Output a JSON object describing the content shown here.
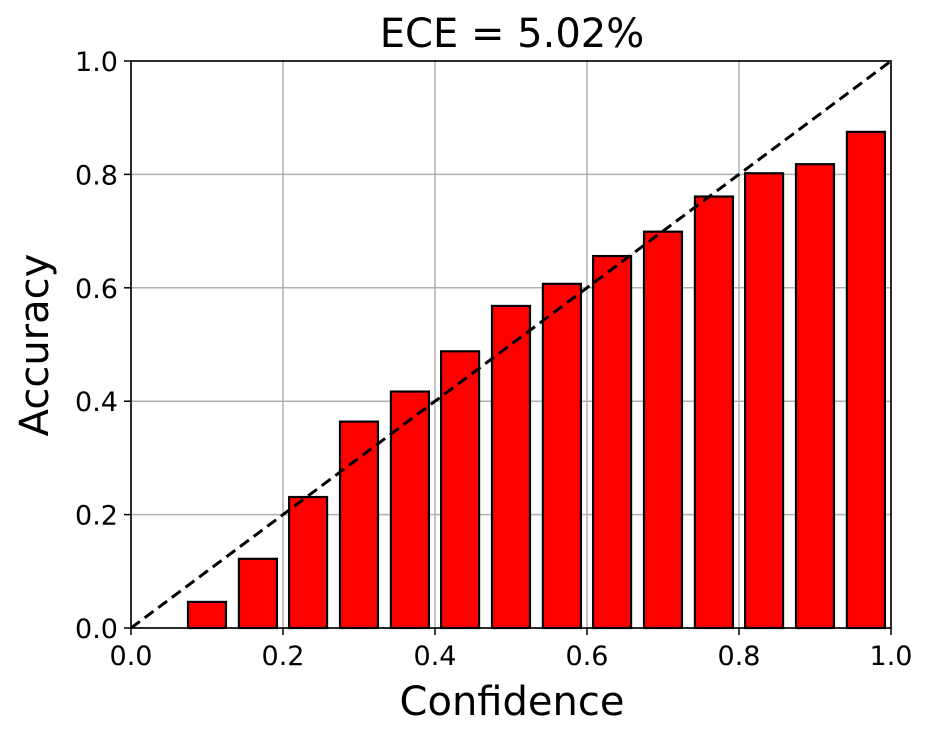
{
  "chart_data": {
    "type": "bar",
    "title": "ECE = 5.02%",
    "xlabel": "Confidence",
    "ylabel": "Accuracy",
    "xlim": [
      0.0,
      1.0
    ],
    "ylim": [
      0.0,
      1.0
    ],
    "grid": true,
    "bin_width": 0.05,
    "x": [
      0.1,
      0.167,
      0.233,
      0.3,
      0.367,
      0.433,
      0.5,
      0.567,
      0.633,
      0.7,
      0.767,
      0.833,
      0.9,
      0.967
    ],
    "values": [
      0.046,
      0.122,
      0.231,
      0.364,
      0.417,
      0.488,
      0.568,
      0.607,
      0.656,
      0.699,
      0.761,
      0.802,
      0.818,
      0.875
    ],
    "xticks": [
      "0.0",
      "0.2",
      "0.4",
      "0.6",
      "0.8",
      "1.0"
    ],
    "yticks": [
      "0.0",
      "0.2",
      "0.4",
      "0.6",
      "0.8",
      "1.0"
    ],
    "reference_line": "diagonal-dashed",
    "colors": {
      "bar_fill": "#ff0000",
      "bar_edge": "#000000",
      "grid": "#b0b0b0",
      "reference_line": "#000000"
    }
  }
}
